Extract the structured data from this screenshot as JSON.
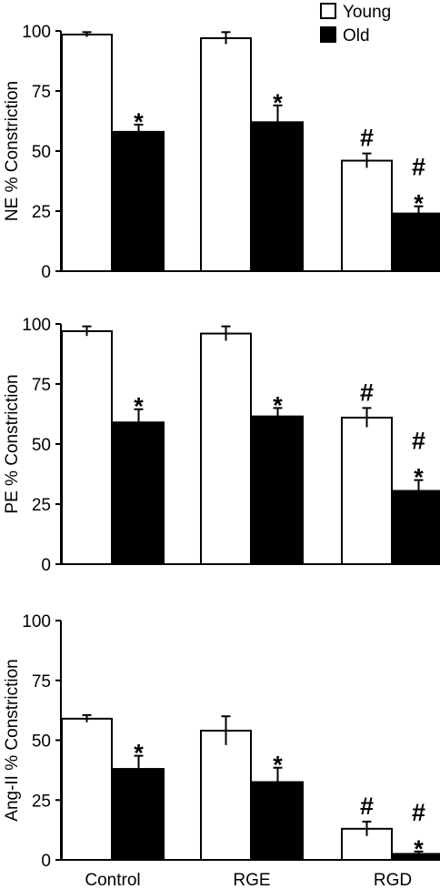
{
  "chart_data": [
    {
      "type": "bar",
      "categories": [
        "Control",
        "RGE",
        "RGD"
      ],
      "ylabel": "NE % Constriction",
      "ylim": [
        0,
        100
      ],
      "yticks": [
        0,
        25,
        50,
        75,
        100
      ],
      "series": [
        {
          "name": "Young",
          "color": "#ffffff",
          "values": [
            98.5,
            97,
            46
          ],
          "errors": [
            1,
            2.5,
            3
          ]
        },
        {
          "name": "Old",
          "color": "#000000",
          "values": [
            58,
            62,
            24
          ],
          "errors": [
            3,
            7,
            3
          ]
        }
      ],
      "annotations": [
        {
          "category": "Control",
          "series": "Old",
          "text": "*"
        },
        {
          "category": "RGE",
          "series": "Old",
          "text": "*"
        },
        {
          "category": "RGD",
          "series": "Young",
          "text": "#"
        },
        {
          "category": "RGD",
          "series": "Old",
          "text": "#"
        },
        {
          "category": "RGD",
          "series": "Old",
          "text": "*"
        }
      ]
    },
    {
      "type": "bar",
      "categories": [
        "Control",
        "RGE",
        "RGD"
      ],
      "ylabel": "PE % Constriction",
      "ylim": [
        0,
        100
      ],
      "yticks": [
        0,
        25,
        50,
        75,
        100
      ],
      "series": [
        {
          "name": "Young",
          "color": "#ffffff",
          "values": [
            97,
            96,
            61
          ],
          "errors": [
            2,
            3,
            4
          ]
        },
        {
          "name": "Old",
          "color": "#000000",
          "values": [
            59,
            61.5,
            30.5
          ],
          "errors": [
            5.5,
            3.5,
            4.5
          ]
        }
      ],
      "annotations": [
        {
          "category": "Control",
          "series": "Old",
          "text": "*"
        },
        {
          "category": "RGE",
          "series": "Old",
          "text": "*"
        },
        {
          "category": "RGD",
          "series": "Young",
          "text": "#"
        },
        {
          "category": "RGD",
          "series": "Old",
          "text": "#"
        },
        {
          "category": "RGD",
          "series": "Old",
          "text": "*"
        }
      ]
    },
    {
      "type": "bar",
      "categories": [
        "Control",
        "RGE",
        "RGD"
      ],
      "ylabel": "Ang-II % Constriction",
      "ylim": [
        0,
        100
      ],
      "yticks": [
        0,
        25,
        50,
        75,
        100
      ],
      "series": [
        {
          "name": "Young",
          "color": "#ffffff",
          "values": [
            59,
            54,
            13
          ],
          "errors": [
            1.5,
            6,
            3
          ]
        },
        {
          "name": "Old",
          "color": "#000000",
          "values": [
            38,
            32.5,
            2.5
          ],
          "errors": [
            5.5,
            6,
            1
          ]
        }
      ],
      "annotations": [
        {
          "category": "Control",
          "series": "Old",
          "text": "*"
        },
        {
          "category": "RGE",
          "series": "Old",
          "text": "*"
        },
        {
          "category": "RGD",
          "series": "Young",
          "text": "#"
        },
        {
          "category": "RGD",
          "series": "Old",
          "text": "#"
        },
        {
          "category": "RGD",
          "series": "Old",
          "text": "*"
        }
      ]
    }
  ],
  "legend": {
    "position": "top-right",
    "items": [
      {
        "label": "Young",
        "color": "#ffffff"
      },
      {
        "label": "Old",
        "color": "#000000"
      }
    ]
  }
}
